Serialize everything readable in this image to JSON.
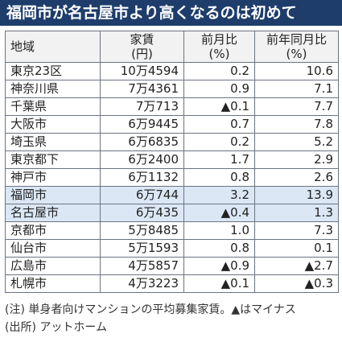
{
  "title": "福岡市が名古屋市より高くなるのは初めて",
  "table": {
    "headers": {
      "region": "地域",
      "rent_line1": "家賃",
      "rent_line2": "(円)",
      "mom_line1": "前月比",
      "mom_line2": "(%)",
      "yoy_line1": "前年同月比",
      "yoy_line2": "(%)"
    },
    "rows": [
      {
        "region": "東京23区",
        "rent": "10万4594",
        "mom": "0.2",
        "yoy": "10.6",
        "highlight": false
      },
      {
        "region": "神奈川県",
        "rent": "7万4361",
        "mom": "0.9",
        "yoy": "7.1",
        "highlight": false
      },
      {
        "region": "千葉県",
        "rent": "7万713",
        "mom": "▲0.1",
        "yoy": "7.7",
        "highlight": false
      },
      {
        "region": "大阪市",
        "rent": "6万9445",
        "mom": "0.7",
        "yoy": "7.8",
        "highlight": false
      },
      {
        "region": "埼玉県",
        "rent": "6万6835",
        "mom": "0.2",
        "yoy": "5.2",
        "highlight": false
      },
      {
        "region": "東京都下",
        "rent": "6万2400",
        "mom": "1.7",
        "yoy": "2.9",
        "highlight": false
      },
      {
        "region": "神戸市",
        "rent": "6万1132",
        "mom": "0.8",
        "yoy": "2.6",
        "highlight": false
      },
      {
        "region": "福岡市",
        "rent": "6万744",
        "mom": "3.2",
        "yoy": "13.9",
        "highlight": true
      },
      {
        "region": "名古屋市",
        "rent": "6万435",
        "mom": "▲0.4",
        "yoy": "1.3",
        "highlight": true
      },
      {
        "region": "京都市",
        "rent": "5万8485",
        "mom": "1.0",
        "yoy": "7.3",
        "highlight": false
      },
      {
        "region": "仙台市",
        "rent": "5万1593",
        "mom": "0.8",
        "yoy": "0.1",
        "highlight": false
      },
      {
        "region": "広島市",
        "rent": "4万5857",
        "mom": "▲0.9",
        "yoy": "▲2.7",
        "highlight": false
      },
      {
        "region": "札幌市",
        "rent": "4万3223",
        "mom": "▲0.1",
        "yoy": "▲0.3",
        "highlight": false
      }
    ]
  },
  "note": "(注) 単身者向けマンションの平均募集家賃。▲はマイナス",
  "source": "(出所) アットホーム",
  "colors": {
    "title_bg": "#1e3d6b",
    "highlight_bg": "#dbe7f5"
  }
}
